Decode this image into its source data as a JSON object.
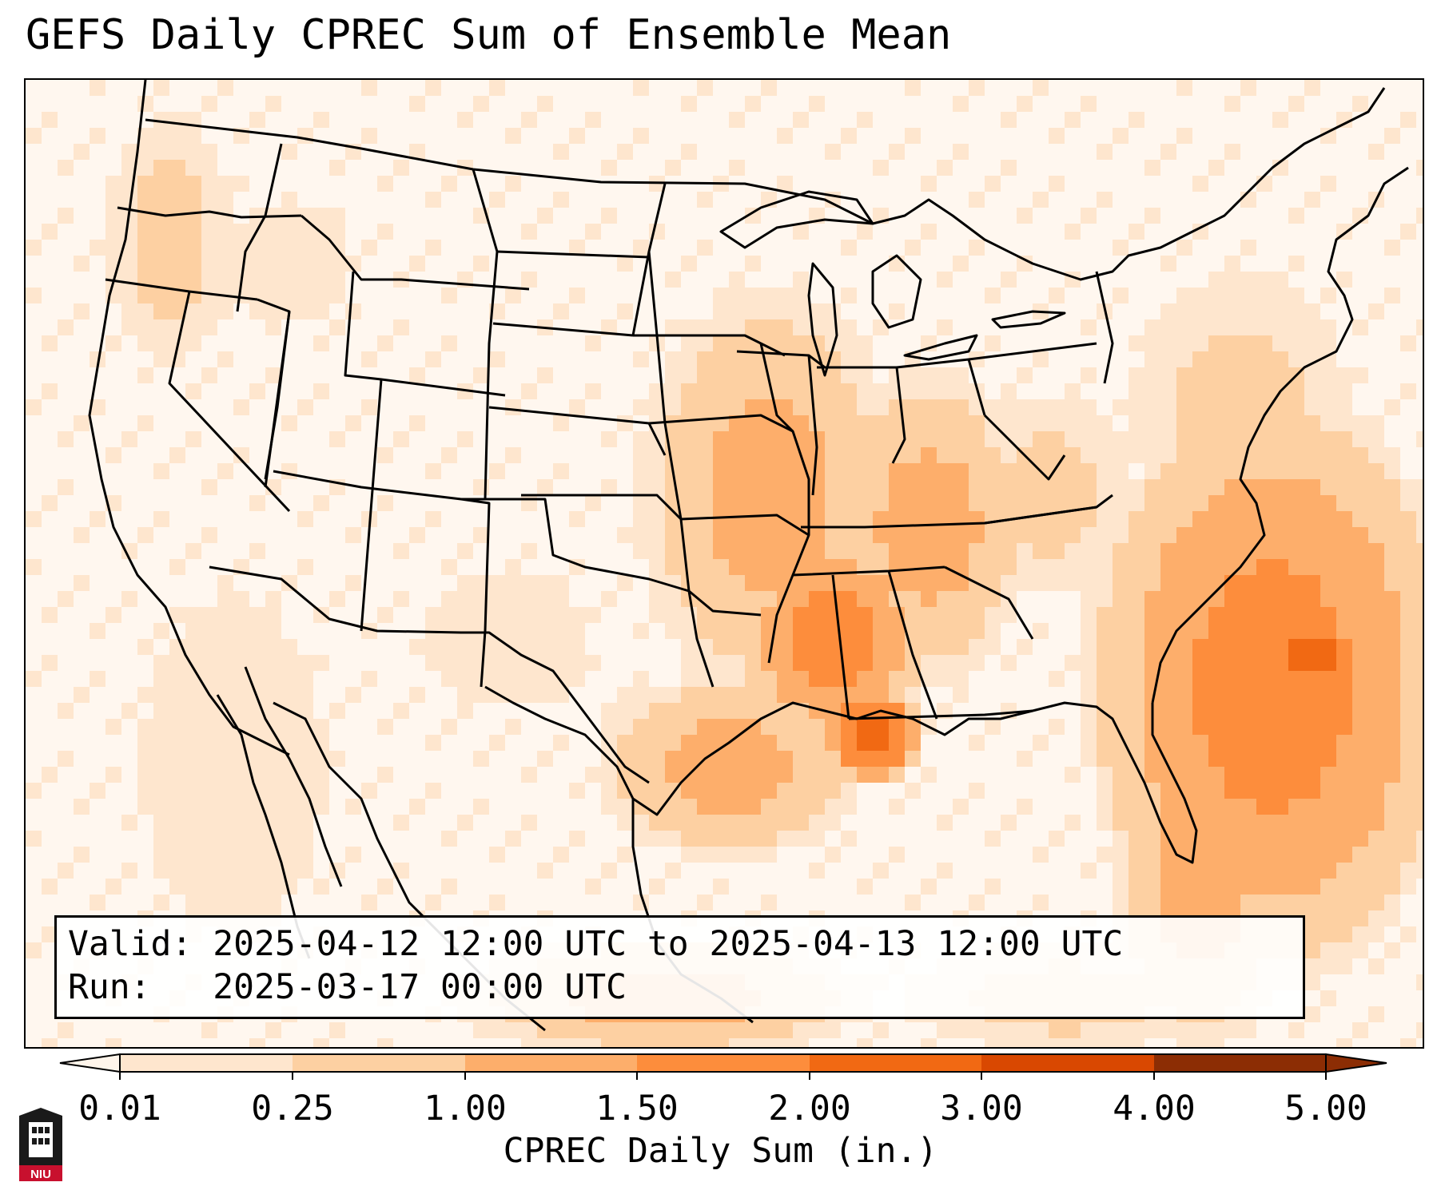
{
  "title": "GEFS Daily CPREC Sum of Ensemble Mean",
  "info": {
    "valid_label": "Valid:",
    "valid_text": "2025-04-12 12:00 UTC to 2025-04-13 12:00 UTC",
    "run_label": "Run:",
    "run_text": "2025-03-17 00:00 UTC"
  },
  "colorbar": {
    "title": "CPREC Daily Sum (in.)",
    "ticks": [
      "0.01",
      "0.25",
      "1.00",
      "1.50",
      "2.00",
      "3.00",
      "4.00",
      "5.00"
    ],
    "colors": [
      "#fff5eb",
      "#fee6ce",
      "#fdd0a2",
      "#fdae6b",
      "#fd8d3c",
      "#f16913",
      "#d94801",
      "#8c2d04"
    ],
    "extend": "both"
  },
  "logo": {
    "text": "NIU",
    "colors": {
      "dark": "#1a1a1a",
      "red": "#c8102e"
    }
  },
  "map": {
    "projection": "Lambert Conformal Conic",
    "region": "Contiguous United States",
    "precip_maxima": "Lower Mississippi Valley and western Atlantic off the Southeast coast",
    "boundaries": "coastlines, country and state borders in black"
  }
}
